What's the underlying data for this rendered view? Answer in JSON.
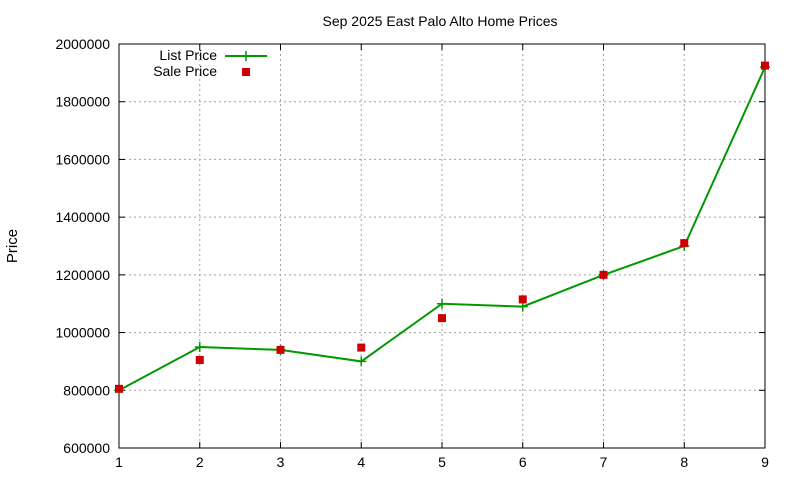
{
  "chart_data": {
    "type": "line",
    "title": "Sep 2025 East Palo Alto Home Prices",
    "xlabel": "",
    "ylabel": "Price",
    "xlim": [
      1,
      9
    ],
    "ylim": [
      600000,
      2000000
    ],
    "x": [
      1,
      2,
      3,
      4,
      5,
      6,
      7,
      8,
      9
    ],
    "x_ticks": [
      "1",
      "2",
      "3",
      "4",
      "5",
      "6",
      "7",
      "8",
      "9"
    ],
    "y_ticks": [
      600000,
      800000,
      1000000,
      1200000,
      1400000,
      1600000,
      1800000,
      2000000
    ],
    "y_tick_labels": [
      "600000",
      "800000",
      "1000000",
      "1200000",
      "1400000",
      "1600000",
      "1800000",
      "2000000"
    ],
    "grid": true,
    "legend_position": "top-left",
    "series": [
      {
        "name": "List Price",
        "style": "line-with-plus-markers",
        "color": "#009900",
        "values": [
          800000,
          950000,
          940000,
          900000,
          1100000,
          1090000,
          1200000,
          1300000,
          1920000
        ]
      },
      {
        "name": "Sale Price",
        "style": "square-markers",
        "color": "#cc0000",
        "values": [
          805000,
          905000,
          940000,
          948000,
          1050000,
          1115000,
          1200000,
          1310000,
          1925000
        ]
      }
    ]
  }
}
